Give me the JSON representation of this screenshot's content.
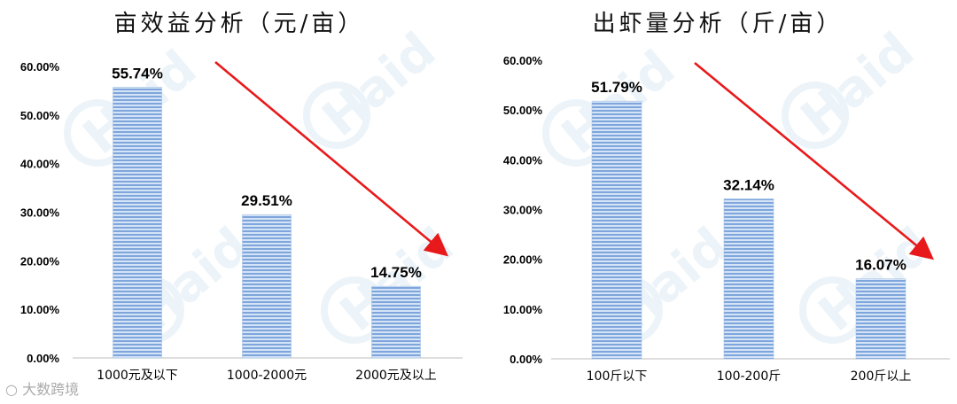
{
  "chart_data": [
    {
      "type": "bar",
      "title": "亩效益分析（元/亩）",
      "categories": [
        "1000元及以下",
        "1000-2000元",
        "2000元及以上"
      ],
      "values": [
        55.74,
        29.51,
        14.75
      ],
      "data_labels": [
        "55.74%",
        "29.51%",
        "14.75%"
      ],
      "y_ticks": [
        "0.00%",
        "10.00%",
        "20.00%",
        "30.00%",
        "40.00%",
        "50.00%",
        "60.00%"
      ],
      "ylim": [
        0,
        60
      ],
      "bar_color": "#7ea6dc",
      "trend_arrow_color": "#e8191b"
    },
    {
      "type": "bar",
      "title": "出虾量分析（斤/亩）",
      "categories": [
        "100斤以下",
        "100-200斤",
        "200斤以上"
      ],
      "values": [
        51.79,
        32.14,
        16.07
      ],
      "data_labels": [
        "51.79%",
        "32.14%",
        "16.07%"
      ],
      "y_ticks": [
        "0.00%",
        "10.00%",
        "20.00%",
        "30.00%",
        "40.00%",
        "50.00%",
        "60.00%"
      ],
      "ylim": [
        0,
        60
      ],
      "bar_color": "#7ea6dc",
      "trend_arrow_color": "#e8191b"
    }
  ],
  "watermark": {
    "brand": "Haid"
  },
  "footer": {
    "brand_text": "大数跨境"
  }
}
